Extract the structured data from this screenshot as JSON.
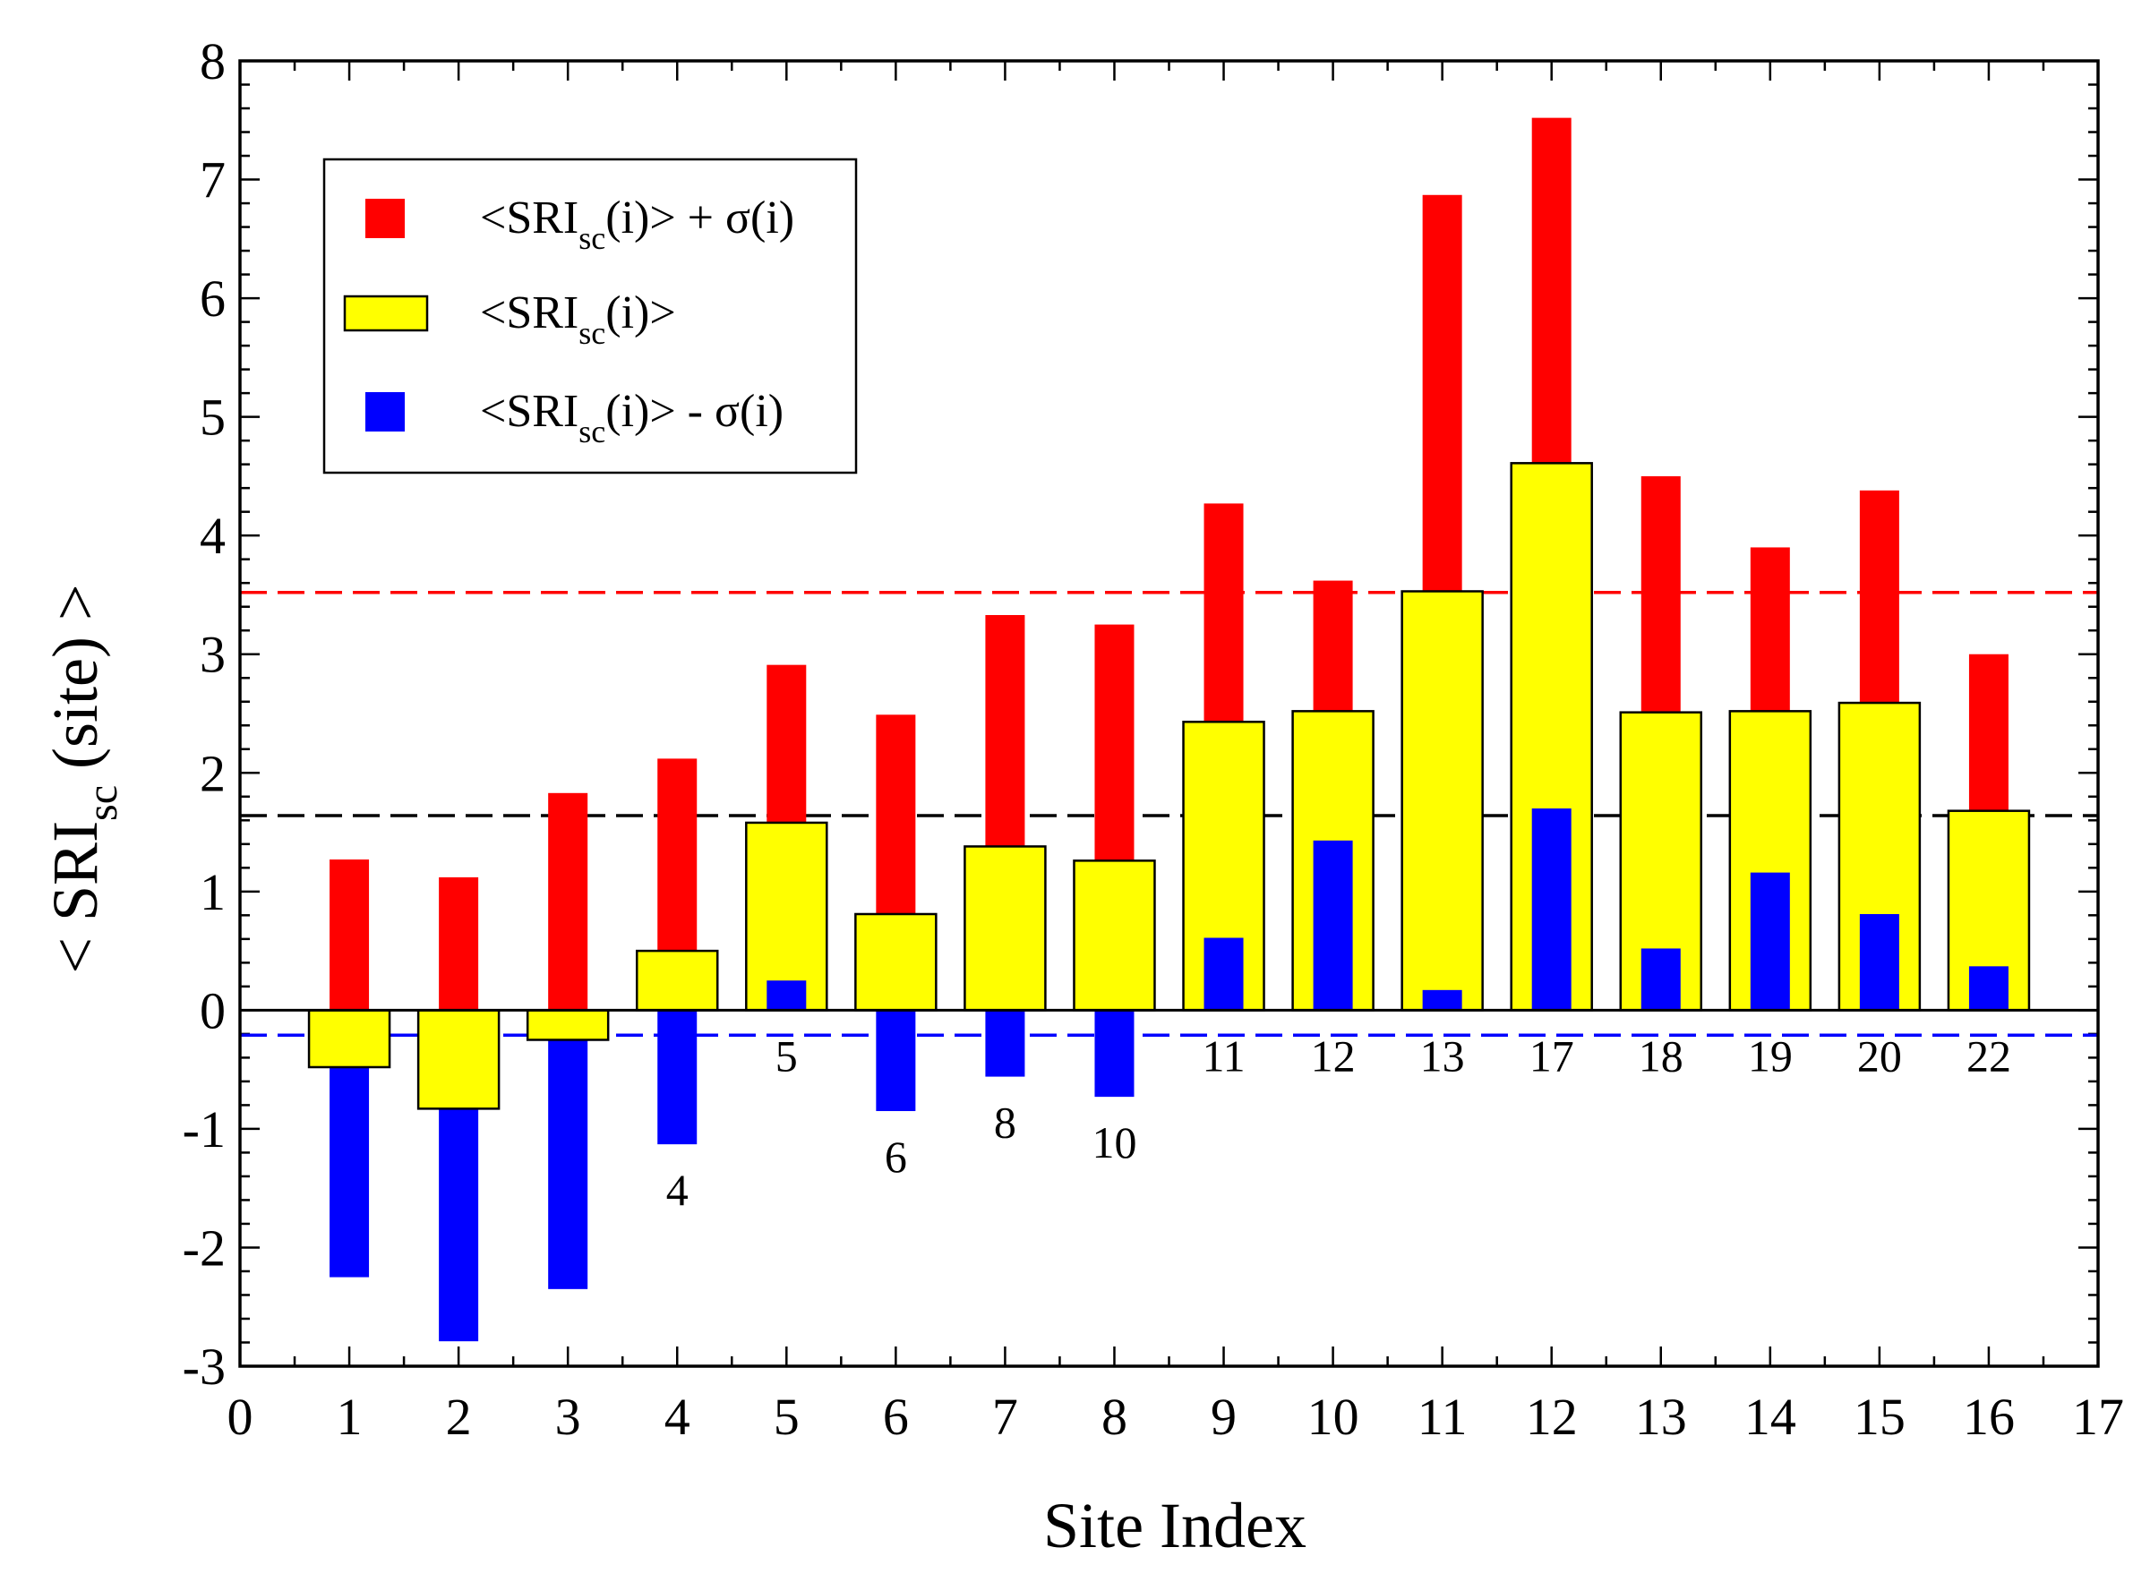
{
  "chart_data": {
    "type": "bar",
    "xlabel": "Site Index",
    "ylabel_main": "< SRI",
    "ylabel_sub": "sc",
    "ylabel_tail": " (site) >",
    "xlim": [
      0,
      17
    ],
    "ylim": [
      -3,
      8
    ],
    "xticks": [
      "0",
      "1",
      "2",
      "3",
      "4",
      "5",
      "6",
      "7",
      "8",
      "9",
      "10",
      "11",
      "12",
      "13",
      "14",
      "15",
      "16",
      "17"
    ],
    "yticks": [
      "-3",
      "-2",
      "-1",
      "0",
      "1",
      "2",
      "3",
      "4",
      "5",
      "6",
      "7",
      "8"
    ],
    "x": [
      1,
      2,
      3,
      4,
      5,
      6,
      7,
      8,
      9,
      10,
      11,
      12,
      13,
      14,
      15,
      16
    ],
    "site_labels": [
      "",
      "",
      "",
      "4",
      "5",
      "6",
      "8",
      "10",
      "11",
      "12",
      "13",
      "17",
      "18",
      "19",
      "20",
      "22"
    ],
    "series": [
      {
        "name": "plus_sigma",
        "color": "#ff0000",
        "values": [
          1.27,
          1.12,
          1.83,
          2.12,
          2.91,
          2.49,
          3.33,
          3.25,
          4.27,
          3.62,
          6.87,
          7.52,
          4.5,
          3.9,
          4.38,
          3.0
        ]
      },
      {
        "name": "mean",
        "color": "#ffff00",
        "values": [
          -0.48,
          -0.83,
          -0.25,
          0.5,
          1.58,
          0.81,
          1.38,
          1.26,
          2.43,
          2.52,
          3.53,
          4.61,
          2.51,
          2.52,
          2.59,
          1.68
        ]
      },
      {
        "name": "minus_sigma",
        "color": "#0000ff",
        "values": [
          -2.25,
          -2.79,
          -2.35,
          -1.13,
          0.25,
          -0.85,
          -0.56,
          -0.73,
          0.61,
          1.43,
          0.17,
          1.7,
          0.52,
          1.16,
          0.81,
          0.37
        ]
      }
    ],
    "reference_lines": [
      {
        "name": "upper",
        "y": 3.52,
        "color": "#ff0000"
      },
      {
        "name": "average",
        "y": 1.64,
        "color": "#000000"
      },
      {
        "name": "lower",
        "y": -0.21,
        "color": "#0000ff"
      }
    ],
    "legend": {
      "placement": "top-left",
      "entries": [
        {
          "series": "plus_sigma",
          "pre": "<SRI",
          "sub": "sc",
          "post": "(i)> + σ(i)",
          "color": "#ff0000"
        },
        {
          "series": "mean",
          "pre": "<SRI",
          "sub": "sc",
          "post": "(i)>",
          "color": "#ffff00"
        },
        {
          "series": "minus_sigma",
          "pre": "<SRI",
          "sub": "sc",
          "post": "(i)> - σ(i)",
          "color": "#0000ff"
        }
      ]
    }
  }
}
